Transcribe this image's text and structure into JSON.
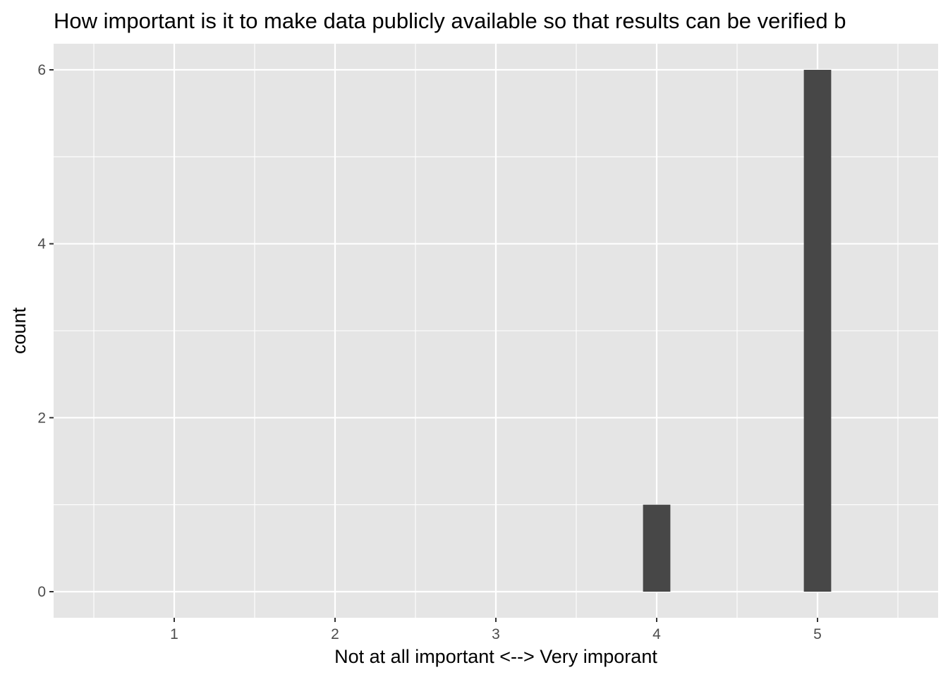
{
  "chart_data": {
    "type": "bar",
    "title": "How important is it to make data publicly available so that results can be verified b",
    "xlabel": "Not at all important <--> Very imporant",
    "ylabel": "count",
    "x_ticks": [
      "1",
      "2",
      "3",
      "4",
      "5"
    ],
    "y_ticks": [
      "0",
      "2",
      "4",
      "6"
    ],
    "xlim": [
      0.25,
      5.75
    ],
    "ylim": [
      -0.3,
      6.3
    ],
    "grid": true,
    "legend": "none",
    "bars": [
      {
        "x": 4,
        "count": 1
      },
      {
        "x": 5,
        "count": 6
      }
    ],
    "colors": {
      "panel_background": "#e5e5e5",
      "grid_line": "#ffffff",
      "bar_fill": "#474747",
      "tick_text": "#4d4d4d",
      "tick_mark": "#333333",
      "text": "#000000"
    }
  }
}
